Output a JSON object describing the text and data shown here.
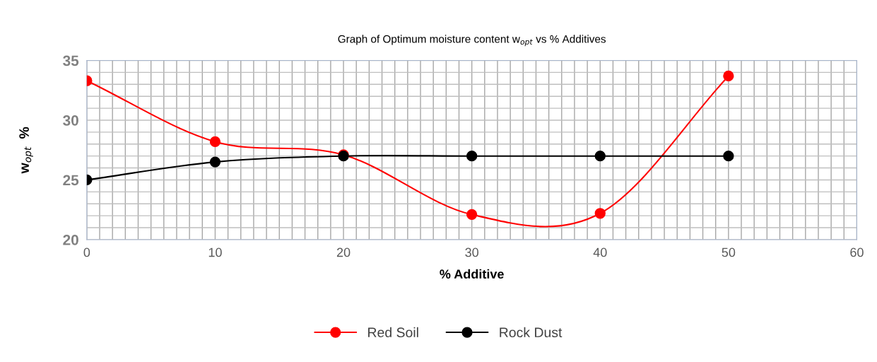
{
  "chart_data": {
    "type": "line",
    "title": "Graph of Optimum moisture content w$_{opt}$ vs % Additives",
    "xlabel": "% Additive",
    "ylabel": "w$_{opt}$  %",
    "x": [
      0,
      10,
      20,
      30,
      40,
      50
    ],
    "series": [
      {
        "name": "Red Soil",
        "color": "#ff0000",
        "values": [
          33.3,
          28.2,
          27.1,
          22.1,
          22.2,
          33.7
        ]
      },
      {
        "name": "Rock Dust",
        "color": "#000000",
        "values": [
          25.0,
          26.5,
          27.0,
          27.0,
          27.0,
          27.0
        ]
      }
    ],
    "xlim": [
      0,
      60
    ],
    "xticks": [
      0,
      10,
      20,
      30,
      40,
      50,
      60
    ],
    "ylim": [
      20,
      35
    ],
    "yticks": [
      20,
      25,
      30,
      35
    ],
    "grid": true,
    "legend": "bottom",
    "marker": "circle",
    "line_style": "solid"
  }
}
